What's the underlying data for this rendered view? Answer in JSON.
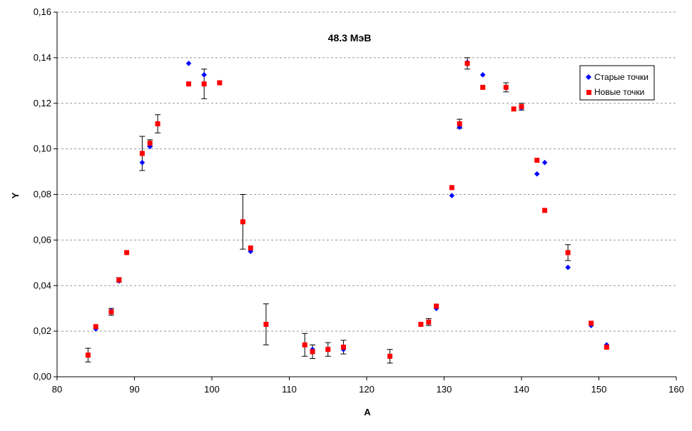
{
  "chart_data": {
    "type": "scatter",
    "title": "48.3 МэВ",
    "xlabel": "A",
    "ylabel": "Y",
    "xlim": [
      80,
      160
    ],
    "ylim": [
      0,
      0.16
    ],
    "x_ticks": [
      "80",
      "90",
      "100",
      "110",
      "120",
      "130",
      "140",
      "150",
      "160"
    ],
    "y_ticks": [
      "0,00",
      "0,02",
      "0,04",
      "0,06",
      "0,08",
      "0,10",
      "0,12",
      "0,14",
      "0,16"
    ],
    "grid": "horizontal dashed",
    "legend_position": "right",
    "series": [
      {
        "name": "Старые точки",
        "color": "#0000ff",
        "marker": "diamond",
        "points": [
          {
            "x": 85,
            "y": 0.021
          },
          {
            "x": 87,
            "y": 0.029
          },
          {
            "x": 88,
            "y": 0.042
          },
          {
            "x": 91,
            "y": 0.094
          },
          {
            "x": 92,
            "y": 0.101
          },
          {
            "x": 97,
            "y": 0.1375
          },
          {
            "x": 99,
            "y": 0.1325
          },
          {
            "x": 105,
            "y": 0.055
          },
          {
            "x": 112,
            "y": 0.014
          },
          {
            "x": 113,
            "y": 0.012
          },
          {
            "x": 115,
            "y": 0.012
          },
          {
            "x": 117,
            "y": 0.012
          },
          {
            "x": 129,
            "y": 0.03
          },
          {
            "x": 131,
            "y": 0.0795
          },
          {
            "x": 132,
            "y": 0.1095
          },
          {
            "x": 133,
            "y": 0.138
          },
          {
            "x": 135,
            "y": 0.1325
          },
          {
            "x": 140,
            "y": 0.118
          },
          {
            "x": 142,
            "y": 0.089
          },
          {
            "x": 143,
            "y": 0.094
          },
          {
            "x": 146,
            "y": 0.048
          },
          {
            "x": 149,
            "y": 0.0225
          },
          {
            "x": 151,
            "y": 0.014
          }
        ]
      },
      {
        "name": "Новые точки",
        "color": "#ff0000",
        "marker": "square",
        "points": [
          {
            "x": 84,
            "y": 0.0095,
            "err": 0.003
          },
          {
            "x": 85,
            "y": 0.022
          },
          {
            "x": 87,
            "y": 0.0285,
            "err": 0.0015
          },
          {
            "x": 88,
            "y": 0.0425,
            "err": 0.001
          },
          {
            "x": 89,
            "y": 0.0545
          },
          {
            "x": 91,
            "y": 0.098,
            "err": 0.0075
          },
          {
            "x": 92,
            "y": 0.1025,
            "err": 0.0015
          },
          {
            "x": 93,
            "y": 0.111,
            "err": 0.004
          },
          {
            "x": 97,
            "y": 0.1285
          },
          {
            "x": 99,
            "y": 0.1285,
            "err": 0.0065
          },
          {
            "x": 101,
            "y": 0.129
          },
          {
            "x": 104,
            "y": 0.068,
            "err": 0.012
          },
          {
            "x": 105,
            "y": 0.0565
          },
          {
            "x": 107,
            "y": 0.023,
            "err": 0.009
          },
          {
            "x": 112,
            "y": 0.014,
            "err": 0.005
          },
          {
            "x": 113,
            "y": 0.011,
            "err": 0.003
          },
          {
            "x": 115,
            "y": 0.012,
            "err": 0.003
          },
          {
            "x": 117,
            "y": 0.013,
            "err": 0.003
          },
          {
            "x": 123,
            "y": 0.009,
            "err": 0.003
          },
          {
            "x": 127,
            "y": 0.023
          },
          {
            "x": 128,
            "y": 0.024,
            "err": 0.0015
          },
          {
            "x": 129,
            "y": 0.031
          },
          {
            "x": 131,
            "y": 0.083
          },
          {
            "x": 132,
            "y": 0.111,
            "err": 0.002
          },
          {
            "x": 133,
            "y": 0.1375,
            "err": 0.0025
          },
          {
            "x": 135,
            "y": 0.127
          },
          {
            "x": 138,
            "y": 0.127,
            "err": 0.002
          },
          {
            "x": 139,
            "y": 0.1175
          },
          {
            "x": 140,
            "y": 0.1185,
            "err": 0.0015
          },
          {
            "x": 142,
            "y": 0.095
          },
          {
            "x": 143,
            "y": 0.073
          },
          {
            "x": 146,
            "y": 0.0545,
            "err": 0.0035
          },
          {
            "x": 149,
            "y": 0.0235
          },
          {
            "x": 151,
            "y": 0.013
          }
        ]
      }
    ]
  }
}
